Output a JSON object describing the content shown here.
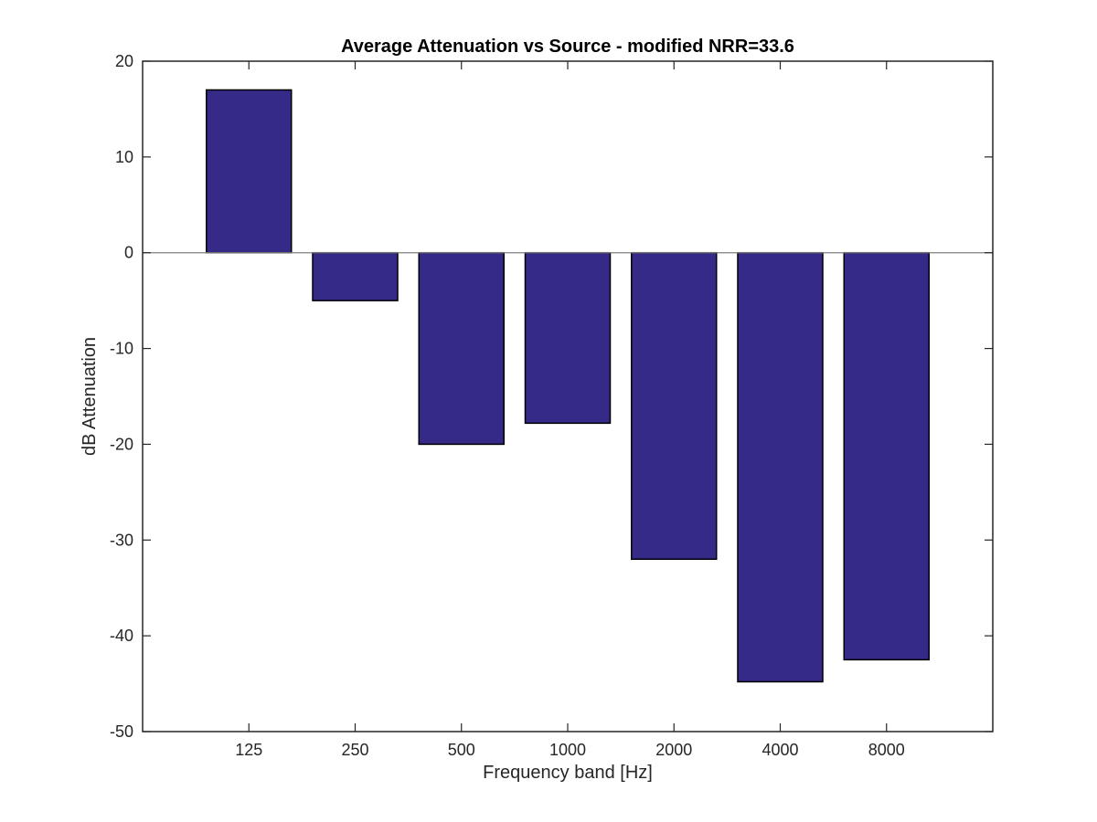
{
  "chart_data": {
    "type": "bar",
    "title": "Average Attenuation vs Source - modified NRR=33.6",
    "xlabel": "Frequency band [Hz]",
    "ylabel": "dB Attenuation",
    "categories": [
      "125",
      "250",
      "500",
      "1000",
      "2000",
      "4000",
      "8000"
    ],
    "values": [
      17,
      -5,
      -20,
      -17.8,
      -32,
      -44.8,
      -42.5
    ],
    "ylim": [
      -50,
      20
    ],
    "yticks": [
      20,
      10,
      0,
      -10,
      -20,
      -30,
      -40,
      -50
    ],
    "ytick_labels": [
      "20",
      "10",
      "0",
      "-10",
      "-20",
      "-30",
      "-40",
      "-50"
    ],
    "grid": false,
    "legend": "none",
    "colors": {
      "bar_fill": "#352a87",
      "bar_edge": "#000000",
      "axes": "#262626",
      "zero_line": "#7f7f7f"
    }
  }
}
